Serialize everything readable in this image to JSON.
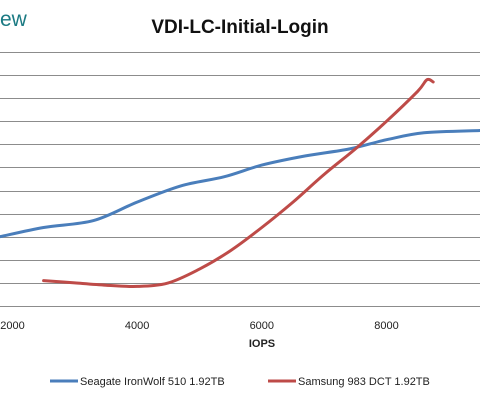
{
  "brand": {
    "text": "ew"
  },
  "chart_data": {
    "type": "line",
    "title": "VDI-LC-Initial-Login",
    "xlabel": "IOPS",
    "ylabel": "",
    "xlim": [
      1800,
      9500
    ],
    "ylim": [
      0,
      11
    ],
    "x_ticks": [
      2000,
      4000,
      6000,
      8000
    ],
    "x_tick_labels": [
      "2000",
      "4000",
      "6000",
      "8000"
    ],
    "y_gridlines": [
      1,
      2,
      3,
      4,
      5,
      6,
      7,
      8,
      9,
      10,
      11
    ],
    "grid": true,
    "legend_position": "bottom",
    "series": [
      {
        "name": "Seagate IronWolf 510 1.92TB",
        "color": "#4a7ebb",
        "x": [
          1800,
          2500,
          3300,
          4000,
          4700,
          5400,
          6000,
          6700,
          7400,
          8000,
          8600,
          9500
        ],
        "y": [
          3.0,
          3.4,
          3.7,
          4.5,
          5.2,
          5.6,
          6.1,
          6.5,
          6.8,
          7.2,
          7.5,
          7.6
        ]
      },
      {
        "name": "Samsung 983 DCT 1.92TB",
        "color": "#be4b48",
        "x": [
          2500,
          3000,
          3500,
          4000,
          4500,
          5000,
          5500,
          6000,
          6500,
          7000,
          7500,
          8000,
          8500,
          8650,
          8750
        ],
        "y": [
          1.1,
          1.0,
          0.9,
          0.85,
          1.0,
          1.6,
          2.4,
          3.4,
          4.5,
          5.7,
          6.8,
          8.0,
          9.3,
          9.8,
          9.7
        ]
      }
    ]
  }
}
